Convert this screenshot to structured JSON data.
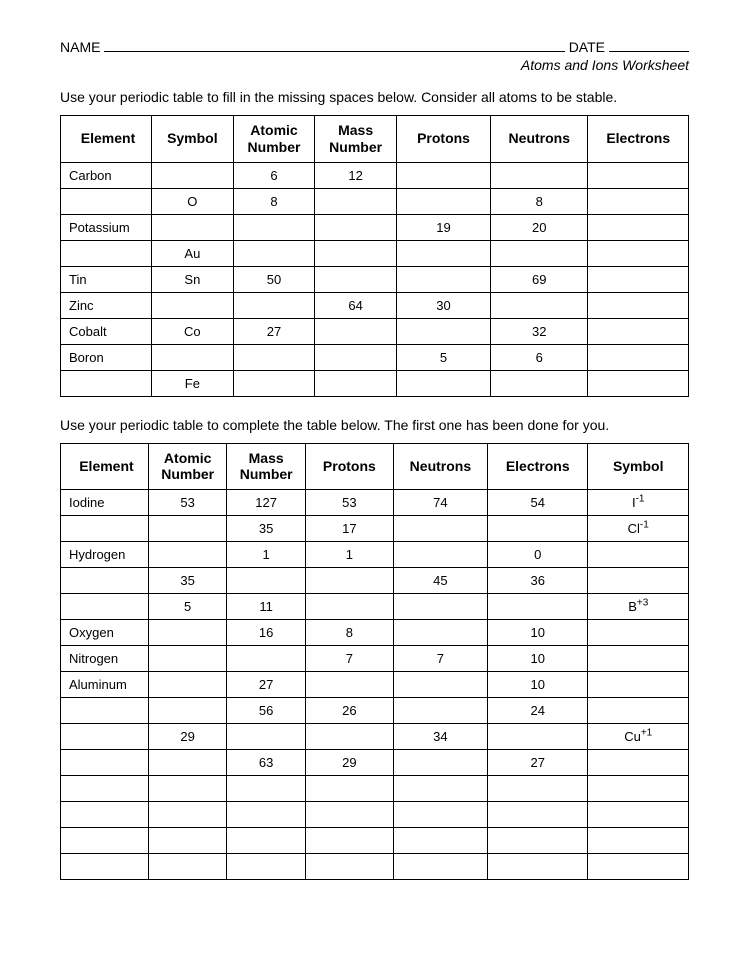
{
  "header": {
    "name_label": "NAME",
    "date_label": "DATE",
    "subtitle": "Atoms and Ions Worksheet"
  },
  "section1": {
    "instruction": "Use your periodic table to fill in the missing spaces below. Consider all atoms to be stable.",
    "columns": [
      "Element",
      "Symbol",
      "Atomic Number",
      "Mass Number",
      "Protons",
      "Neutrons",
      "Electrons"
    ],
    "rows": [
      [
        "Carbon",
        "",
        "6",
        "12",
        "",
        "",
        ""
      ],
      [
        "",
        "O",
        "8",
        "",
        "",
        "8",
        ""
      ],
      [
        "Potassium",
        "",
        "",
        "",
        "19",
        "20",
        ""
      ],
      [
        "",
        "Au",
        "",
        "",
        "",
        "",
        ""
      ],
      [
        "Tin",
        "Sn",
        "50",
        "",
        "",
        "69",
        ""
      ],
      [
        "Zinc",
        "",
        "",
        "64",
        "30",
        "",
        ""
      ],
      [
        "Cobalt",
        "Co",
        "27",
        "",
        "",
        "32",
        ""
      ],
      [
        "Boron",
        "",
        "",
        "",
        "5",
        "6",
        ""
      ],
      [
        "",
        "Fe",
        "",
        "",
        "",
        "",
        ""
      ]
    ]
  },
  "section2": {
    "instruction": "Use your periodic table to complete the table below. The first one has been done for you.",
    "columns": [
      "Element",
      "Atomic Number",
      "Mass Number",
      "Protons",
      "Neutrons",
      "Electrons",
      "Symbol"
    ],
    "rows": [
      {
        "cells": [
          "Iodine",
          "53",
          "127",
          "53",
          "74",
          "54",
          ""
        ],
        "symbol_base": "I",
        "symbol_sup": "-1"
      },
      {
        "cells": [
          "",
          "",
          "35",
          "17",
          "",
          "",
          ""
        ],
        "symbol_base": "Cl",
        "symbol_sup": "-1"
      },
      {
        "cells": [
          "Hydrogen",
          "",
          "1",
          "1",
          "",
          "0",
          ""
        ],
        "symbol_base": "",
        "symbol_sup": ""
      },
      {
        "cells": [
          "",
          "35",
          "",
          "",
          "45",
          "36",
          ""
        ],
        "symbol_base": "",
        "symbol_sup": ""
      },
      {
        "cells": [
          "",
          "5",
          "11",
          "",
          "",
          "",
          ""
        ],
        "symbol_base": "B",
        "symbol_sup": "+3"
      },
      {
        "cells": [
          "Oxygen",
          "",
          "16",
          "8",
          "",
          "10",
          ""
        ],
        "symbol_base": "",
        "symbol_sup": ""
      },
      {
        "cells": [
          "Nitrogen",
          "",
          "",
          "7",
          "7",
          "10",
          ""
        ],
        "symbol_base": "",
        "symbol_sup": ""
      },
      {
        "cells": [
          "Aluminum",
          "",
          "27",
          "",
          "",
          "10",
          ""
        ],
        "symbol_base": "",
        "symbol_sup": ""
      },
      {
        "cells": [
          "",
          "",
          "56",
          "26",
          "",
          "24",
          ""
        ],
        "symbol_base": "",
        "symbol_sup": ""
      },
      {
        "cells": [
          "",
          "29",
          "",
          "",
          "34",
          "",
          ""
        ],
        "symbol_base": "Cu",
        "symbol_sup": "+1"
      },
      {
        "cells": [
          "",
          "",
          "63",
          "29",
          "",
          "27",
          ""
        ],
        "symbol_base": "",
        "symbol_sup": ""
      },
      {
        "cells": [
          "",
          "",
          "",
          "",
          "",
          "",
          ""
        ],
        "symbol_base": "",
        "symbol_sup": ""
      },
      {
        "cells": [
          "",
          "",
          "",
          "",
          "",
          "",
          ""
        ],
        "symbol_base": "",
        "symbol_sup": ""
      },
      {
        "cells": [
          "",
          "",
          "",
          "",
          "",
          "",
          ""
        ],
        "symbol_base": "",
        "symbol_sup": ""
      },
      {
        "cells": [
          "",
          "",
          "",
          "",
          "",
          "",
          ""
        ],
        "symbol_base": "",
        "symbol_sup": ""
      }
    ]
  },
  "style": {
    "font_family": "Arial",
    "body_fontsize": 14,
    "table_fontsize": 13,
    "header_fontsize": 14,
    "border_color": "#000000",
    "background_color": "#ffffff",
    "text_color": "#000000"
  }
}
